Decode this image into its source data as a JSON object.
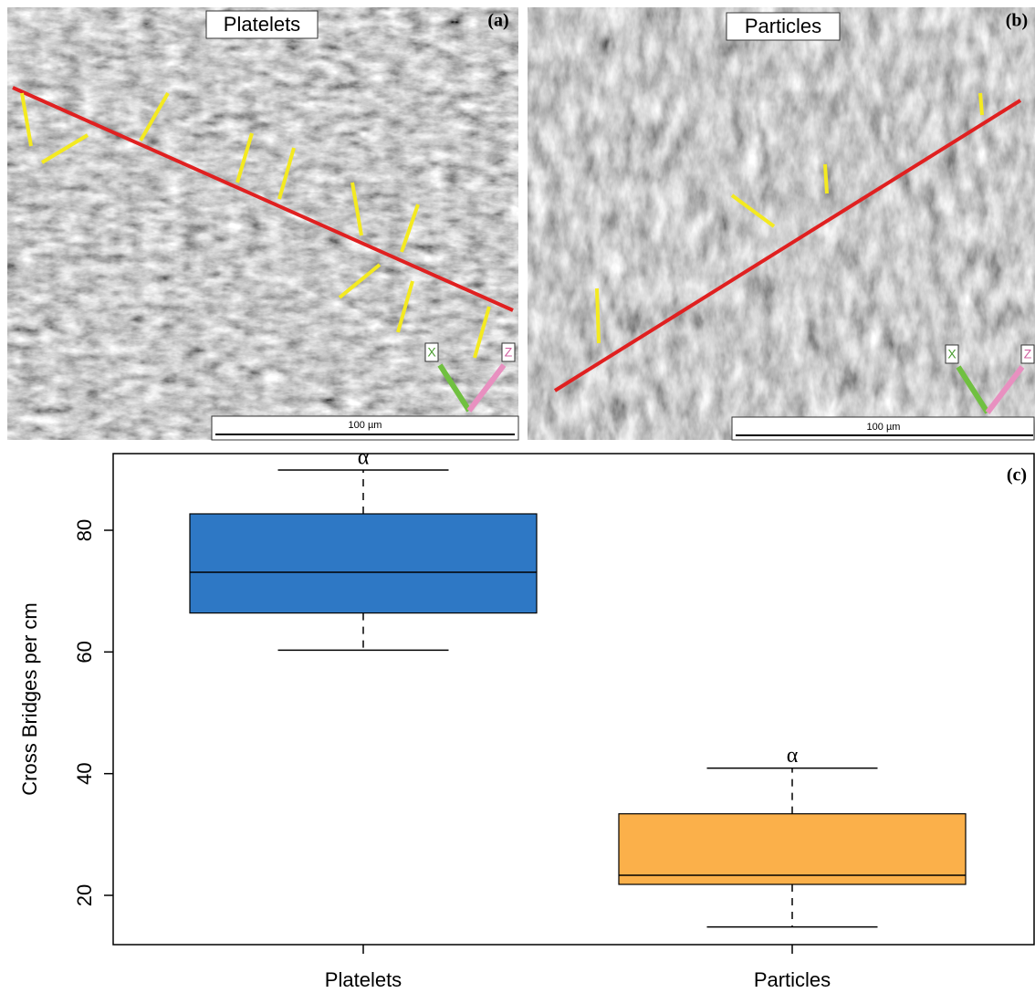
{
  "panels": [
    {
      "label": "Platelets",
      "tag": "(a)",
      "scale": "100 µm",
      "axes": [
        "X",
        "Z"
      ]
    },
    {
      "label": "Particles",
      "tag": "(b)",
      "scale": "100 µm",
      "axes": [
        "X",
        "Z"
      ]
    }
  ],
  "chart_data": {
    "type": "box",
    "tag": "(c)",
    "y_label": "Cross Bridges per cm",
    "categories": [
      "Platelets",
      "Particles"
    ],
    "boxes": [
      {
        "whislo": 60.3,
        "q1": 66.4,
        "med": 73.1,
        "q3": 82.7,
        "whishi": 89.9
      },
      {
        "whislo": 14.8,
        "q1": 21.8,
        "med": 23.3,
        "q3": 33.4,
        "whishi": 40.9
      }
    ],
    "colors": [
      "#2e78c5",
      "#fbb04a"
    ],
    "annotations": [
      "α",
      "α"
    ],
    "ylim": [
      11.9,
      92.6
    ],
    "yticks": [
      20,
      40,
      60,
      80
    ]
  }
}
